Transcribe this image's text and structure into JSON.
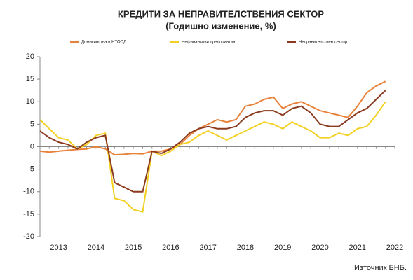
{
  "chart_data": {
    "type": "line",
    "title": "КРЕДИТИ ЗА НЕПРАВИТЕЛСТВЕНИЯ  СЕКТОР",
    "subtitle": "(Годишно  изменение, %)",
    "source": "Източник БНБ.",
    "categories": [
      null,
      null,
      "2013",
      null,
      null,
      null,
      "2014",
      null,
      null,
      null,
      "2015",
      null,
      null,
      null,
      "2016",
      null,
      null,
      null,
      "2017",
      null,
      null,
      null,
      "2018",
      null,
      null,
      null,
      "2019",
      null,
      null,
      null,
      "2020",
      null,
      null,
      null,
      "2021",
      null,
      null,
      null,
      "2022"
    ],
    "series": [
      {
        "name": "Домакинства  и  НТООД",
        "color": "#e8823a",
        "values": [
          -1,
          -1.2,
          -1,
          -0.8,
          -0.6,
          -0.5,
          0,
          -0.5,
          -1.8,
          -1.7,
          -1.5,
          -1.6,
          -1,
          -1,
          -0.5,
          0.5,
          2.5,
          4,
          5,
          6,
          5.5,
          6,
          9,
          9.5,
          10.5,
          11,
          8.5,
          9.5,
          10,
          9,
          8,
          7.5,
          7,
          6.5,
          9,
          12,
          13.5,
          14.5,
          null
        ]
      },
      {
        "name": "Нефинансови  предприятия",
        "color": "#f2d024",
        "values": [
          6,
          4,
          2,
          1.5,
          -0.5,
          0.5,
          2.5,
          3,
          -11.5,
          -12,
          -14,
          -14.5,
          -1,
          -2,
          -1,
          0.5,
          1,
          2.5,
          3.5,
          2.5,
          1.5,
          2.5,
          3.5,
          4.5,
          5.5,
          5,
          4,
          5.5,
          4.5,
          3.5,
          2,
          2,
          3,
          2.5,
          4,
          4.5,
          7,
          10,
          null
        ]
      },
      {
        "name": "Неправителствен  сектор",
        "color": "#8b3a1e",
        "values": [
          3.5,
          2,
          1,
          0.5,
          -0.5,
          1,
          2,
          2.5,
          -8,
          -9,
          -10,
          -10,
          -1,
          -1.5,
          -0.5,
          1,
          3,
          4,
          4.5,
          4,
          4,
          4.5,
          6.5,
          7.5,
          8,
          8,
          7,
          8.5,
          9,
          7.5,
          5,
          4.5,
          4.5,
          6,
          7.5,
          8.5,
          10.5,
          12.5,
          null
        ]
      }
    ],
    "ylim": [
      -20,
      20
    ],
    "yticks": [
      -20,
      -15,
      -10,
      -5,
      0,
      5,
      10,
      15,
      20
    ],
    "grid": false
  }
}
